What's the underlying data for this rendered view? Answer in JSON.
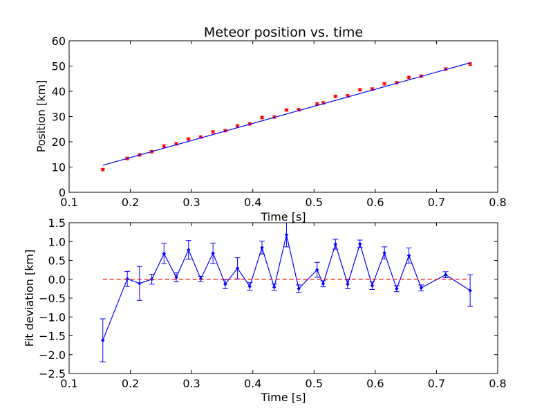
{
  "chart_data": [
    {
      "type": "scatter",
      "title": "Meteor position vs. time",
      "xlabel": "Time [s]",
      "ylabel": "Position [km]",
      "xlim": [
        0.1,
        0.8
      ],
      "ylim": [
        0,
        60
      ],
      "xticks": [
        "0.1",
        "0.2",
        "0.3",
        "0.4",
        "0.5",
        "0.6",
        "0.7",
        "0.8"
      ],
      "yticks": [
        "0",
        "10",
        "20",
        "30",
        "40",
        "50",
        "60"
      ],
      "grid": false,
      "series": [
        {
          "kind": "points_with_errorbars",
          "color": "#ff0000",
          "x": [
            0.155,
            0.195,
            0.215,
            0.235,
            0.255,
            0.275,
            0.295,
            0.315,
            0.335,
            0.355,
            0.375,
            0.395,
            0.415,
            0.435,
            0.455,
            0.475,
            0.505,
            0.515,
            0.535,
            0.555,
            0.575,
            0.595,
            0.615,
            0.635,
            0.655,
            0.675,
            0.715,
            0.755
          ],
          "y": [
            9.0,
            13.4,
            14.8,
            16.1,
            18.3,
            19.2,
            21.1,
            21.9,
            23.9,
            24.4,
            26.3,
            27.1,
            29.6,
            29.8,
            32.6,
            32.7,
            35.0,
            35.4,
            38.0,
            38.2,
            40.6,
            40.9,
            43.0,
            43.4,
            45.5,
            46.0,
            48.8,
            50.8
          ],
          "yerr": 0.5
        },
        {
          "kind": "fit_line",
          "color": "#0000ff",
          "x": [
            0.155,
            0.755
          ],
          "y": [
            10.7,
            51.3
          ]
        }
      ]
    },
    {
      "type": "line",
      "title": "",
      "xlabel": "Time [s]",
      "ylabel": "Fit deviation [km]",
      "xlim": [
        0.1,
        0.8
      ],
      "ylim": [
        -2.5,
        1.5
      ],
      "xticks": [
        "0.1",
        "0.2",
        "0.3",
        "0.4",
        "0.5",
        "0.6",
        "0.7",
        "0.8"
      ],
      "yticks": [
        "−2.5",
        "−2.0",
        "−1.5",
        "−1.0",
        "−0.5",
        "0.0",
        "0.5",
        "1.0",
        "1.5"
      ],
      "grid": false,
      "series": [
        {
          "kind": "line_with_errorbars",
          "color": "#0000ff",
          "x": [
            0.155,
            0.195,
            0.215,
            0.235,
            0.255,
            0.275,
            0.295,
            0.315,
            0.335,
            0.355,
            0.375,
            0.395,
            0.415,
            0.435,
            0.455,
            0.475,
            0.505,
            0.515,
            0.535,
            0.555,
            0.575,
            0.595,
            0.615,
            0.635,
            0.655,
            0.675,
            0.715,
            0.755
          ],
          "y": [
            -1.62,
            0.01,
            -0.11,
            0.0,
            0.68,
            0.05,
            0.78,
            0.01,
            0.69,
            -0.13,
            0.29,
            -0.19,
            0.84,
            -0.21,
            1.18,
            -0.25,
            0.25,
            -0.12,
            0.93,
            -0.13,
            0.94,
            -0.17,
            0.7,
            -0.25,
            0.63,
            -0.23,
            0.12,
            -0.3
          ],
          "yerr": [
            0.57,
            0.2,
            0.45,
            0.13,
            0.27,
            0.12,
            0.25,
            0.07,
            0.27,
            0.12,
            0.28,
            0.1,
            0.17,
            0.08,
            0.32,
            0.1,
            0.2,
            0.08,
            0.13,
            0.12,
            0.1,
            0.1,
            0.16,
            0.08,
            0.2,
            0.08,
            0.08,
            0.42
          ]
        },
        {
          "kind": "zero_reference",
          "color": "#ff0000",
          "style": "dashed",
          "x": [
            0.155,
            0.755
          ],
          "y": [
            0,
            0
          ]
        }
      ]
    }
  ]
}
